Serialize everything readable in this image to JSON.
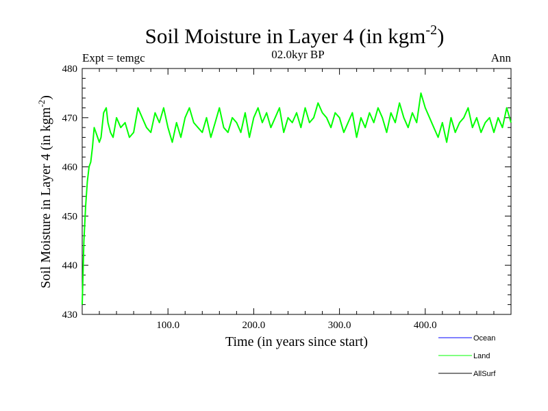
{
  "chart_data": {
    "type": "line",
    "title": "Soil Moisture in Layer 4 (in kgm",
    "title_superscript": "-2",
    "title_close": ")",
    "subtitle": "02.0kyr BP",
    "left_label": "Expt = temgc",
    "right_label": "Ann",
    "xlabel": "Time (in years since start)",
    "ylabel": "Soil Moisture in Layer 4 (in kgm",
    "ylabel_superscript": "-2",
    "ylabel_close": ")",
    "xlim": [
      0,
      500
    ],
    "ylim": [
      430,
      480
    ],
    "x_ticks": [
      {
        "value": 100,
        "label": "100.0"
      },
      {
        "value": 200,
        "label": "200.0"
      },
      {
        "value": 300,
        "label": "300.0"
      },
      {
        "value": 400,
        "label": "400.0"
      }
    ],
    "y_ticks": [
      {
        "value": 430,
        "label": "430"
      },
      {
        "value": 440,
        "label": "440"
      },
      {
        "value": 450,
        "label": "450"
      },
      {
        "value": 460,
        "label": "460"
      },
      {
        "value": 470,
        "label": "470"
      },
      {
        "value": 480,
        "label": "480"
      }
    ],
    "legend": [
      {
        "name": "Ocean",
        "color": "#0000ff"
      },
      {
        "name": "Land",
        "color": "#00ff00"
      },
      {
        "name": "AllSurf",
        "color": "#000000"
      }
    ],
    "series": [
      {
        "name": "Land",
        "color": "#00ff00",
        "x": [
          0,
          2,
          4,
          6,
          8,
          10,
          12,
          14,
          16,
          18,
          20,
          22,
          25,
          28,
          30,
          33,
          36,
          40,
          45,
          50,
          55,
          60,
          65,
          70,
          75,
          80,
          85,
          90,
          95,
          100,
          105,
          110,
          115,
          120,
          125,
          130,
          135,
          140,
          145,
          150,
          155,
          160,
          165,
          170,
          175,
          180,
          185,
          190,
          195,
          200,
          205,
          210,
          215,
          220,
          225,
          230,
          235,
          240,
          245,
          250,
          255,
          260,
          265,
          270,
          275,
          280,
          285,
          290,
          295,
          300,
          305,
          310,
          315,
          320,
          325,
          330,
          335,
          340,
          345,
          350,
          355,
          360,
          365,
          370,
          375,
          380,
          385,
          390,
          395,
          400,
          405,
          410,
          415,
          420,
          425,
          430,
          435,
          440,
          445,
          450,
          455,
          460,
          465,
          470,
          475,
          480,
          485,
          490,
          495,
          500
        ],
        "values": [
          432,
          445,
          452,
          457,
          460,
          461,
          464,
          468,
          467,
          466,
          465,
          466,
          471,
          472,
          469,
          467,
          466,
          470,
          468,
          469,
          466,
          467,
          472,
          470,
          468,
          467,
          471,
          469,
          472,
          468,
          465,
          469,
          466,
          470,
          472,
          469,
          468,
          467,
          470,
          466,
          469,
          472,
          468,
          467,
          470,
          469,
          467,
          471,
          466,
          470,
          472,
          469,
          471,
          468,
          470,
          472,
          467,
          470,
          469,
          471,
          468,
          472,
          469,
          470,
          473,
          471,
          470,
          468,
          471,
          470,
          467,
          469,
          471,
          466,
          470,
          468,
          471,
          469,
          472,
          470,
          467,
          471,
          469,
          473,
          470,
          468,
          471,
          469,
          475,
          472,
          470,
          468,
          466,
          469,
          465,
          470,
          467,
          469,
          470,
          472,
          468,
          470,
          467,
          469,
          470,
          467,
          470,
          468,
          472,
          469
        ]
      }
    ]
  }
}
